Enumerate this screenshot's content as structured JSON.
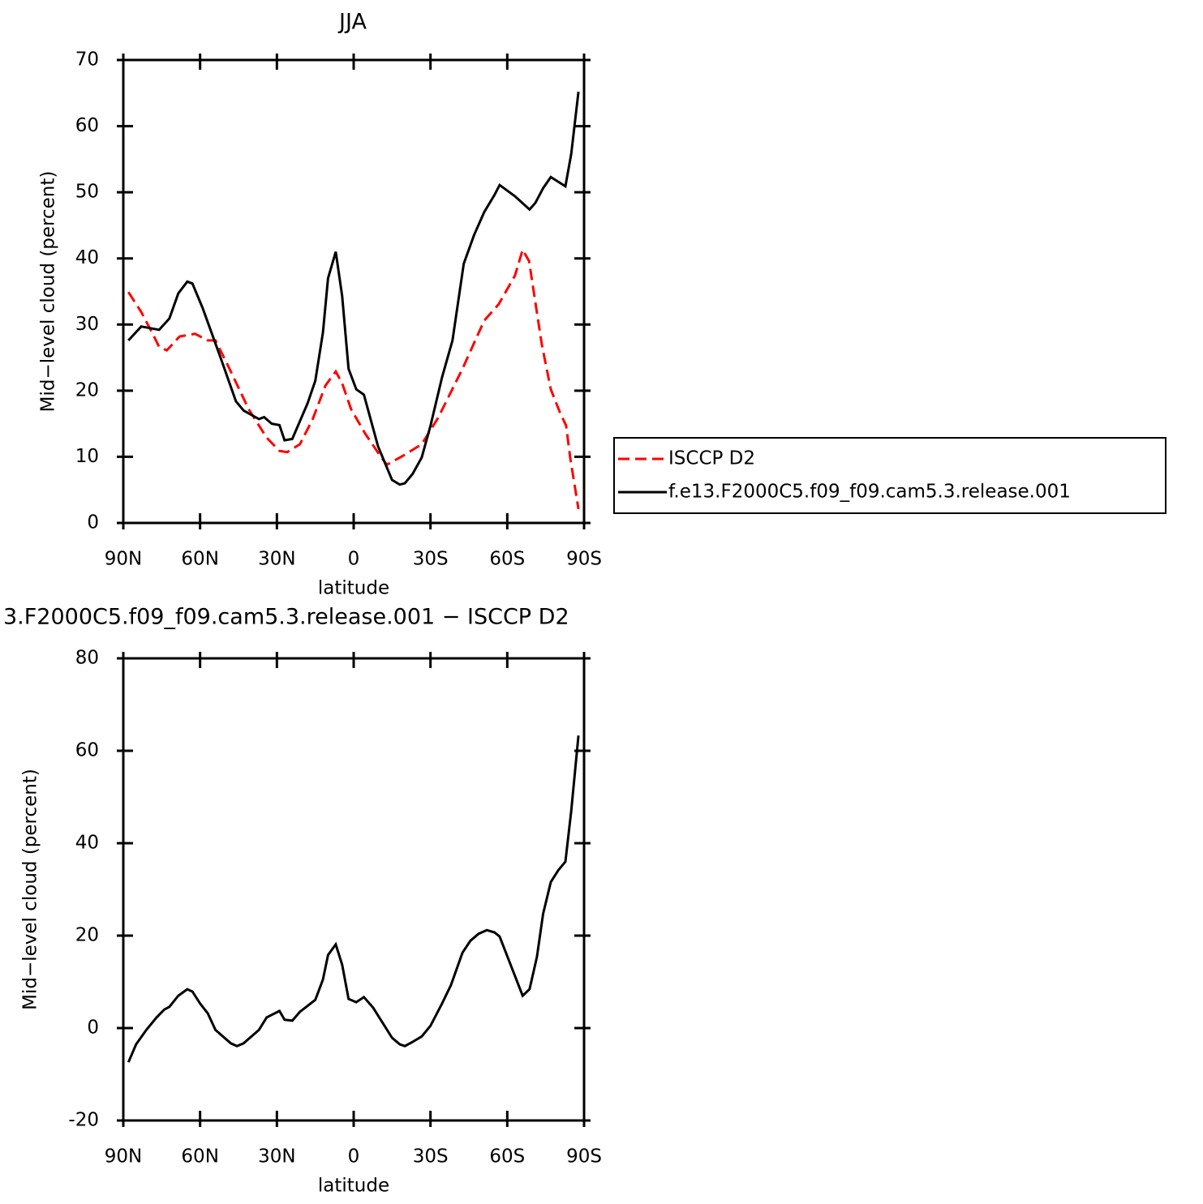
{
  "chart_data": [
    {
      "type": "line",
      "title": "JJA",
      "x_label": "latitude",
      "y_label": "Mid−level cloud (percent)",
      "xlim": [
        90,
        -90
      ],
      "xticks": [
        {
          "value": 90,
          "label": "90N"
        },
        {
          "value": 60,
          "label": "60N"
        },
        {
          "value": 30,
          "label": "30N"
        },
        0,
        {
          "value": -30,
          "label": "30S"
        },
        {
          "value": -60,
          "label": "60S"
        },
        {
          "value": -90,
          "label": "90S"
        }
      ],
      "ylim": [
        0,
        70
      ],
      "yticks": [
        0,
        10,
        20,
        30,
        40,
        50,
        60,
        70
      ],
      "legend": "right",
      "series": [
        {
          "name": "ISCCP D2",
          "color": "#ff0000",
          "line_style": "dashed",
          "x": [
            88,
            83,
            78,
            76,
            73,
            68,
            62,
            57,
            54,
            49,
            41,
            34,
            29,
            26,
            21,
            16,
            11,
            7,
            4.5,
            1,
            -4.5,
            -11,
            -13,
            -19,
            -26.6,
            -33,
            -42.5,
            -51,
            -56.7,
            -63,
            -66,
            -68.5,
            -73.5,
            -77,
            -80.5,
            -83,
            -84.6,
            -87.8
          ],
          "values": [
            34.9,
            31.9,
            28.2,
            26.6,
            26.1,
            28.2,
            28.6,
            27.6,
            27.6,
            23.7,
            17.2,
            12.9,
            10.9,
            10.7,
            11.9,
            15.7,
            20.8,
            22.9,
            21.1,
            17.2,
            13.5,
            9.8,
            8.8,
            10.1,
            11.9,
            15.9,
            23.3,
            30.6,
            33.1,
            37.4,
            41.3,
            39.6,
            27,
            20.2,
            16.8,
            14.7,
            9.8,
            2.1
          ]
        },
        {
          "name": "f.e13.F2000C5.f09_f09.cam5.3.release.001",
          "color": "#000000",
          "line_style": "solid",
          "x": [
            88,
            83,
            76,
            72,
            68.5,
            65,
            63,
            59,
            52,
            46,
            43,
            37,
            35,
            32,
            29,
            27,
            24,
            18,
            15,
            12,
            10,
            7,
            4.5,
            2,
            -1,
            -4,
            -9.5,
            -15,
            -18,
            -20,
            -23,
            -26.6,
            -30,
            -34.5,
            -38.6,
            -43,
            -47,
            -51,
            -55,
            -57,
            -63,
            -68.7,
            -71,
            -74,
            -77,
            -82.7,
            -85,
            -87.8
          ],
          "values": [
            27.6,
            29.7,
            29.2,
            30.9,
            34.7,
            36.5,
            36.2,
            32.5,
            25,
            18.4,
            17,
            15.7,
            16,
            15,
            14.8,
            12.5,
            12.7,
            18.1,
            21.5,
            28.8,
            37,
            41,
            34.3,
            23.3,
            20.2,
            19.4,
            11.6,
            6.5,
            5.8,
            6,
            7.4,
            9.9,
            14.7,
            22,
            27.6,
            39.2,
            43.5,
            47,
            49.6,
            51.1,
            49.4,
            47.4,
            48.4,
            50.6,
            52.3,
            50.9,
            55.8,
            65.2
          ]
        }
      ]
    },
    {
      "type": "line",
      "title": "3.F2000C5.f09_f09.cam5.3.release.001 − ISCCP D2",
      "x_label": "latitude",
      "y_label": "Mid−level cloud (percent)",
      "xlim": [
        90,
        -90
      ],
      "xticks": [
        {
          "value": 90,
          "label": "90N"
        },
        {
          "value": 60,
          "label": "60N"
        },
        {
          "value": 30,
          "label": "30N"
        },
        0,
        {
          "value": -30,
          "label": "30S"
        },
        {
          "value": -60,
          "label": "60S"
        },
        {
          "value": -90,
          "label": "90S"
        }
      ],
      "ylim": [
        -20,
        80
      ],
      "yticks": [
        -20,
        0,
        20,
        40,
        60,
        80
      ],
      "series": [
        {
          "color": "#000000",
          "line_style": "solid",
          "x": [
            88,
            85,
            81,
            77,
            74,
            72,
            68.5,
            65,
            63,
            60,
            57,
            54,
            48,
            45.6,
            43,
            37,
            34,
            29,
            27,
            24,
            21,
            15,
            12,
            10,
            7,
            4.5,
            2,
            -1,
            -4,
            -7.6,
            -15,
            -18,
            -20,
            -23,
            -26.6,
            -30,
            -34.5,
            -38,
            -42.5,
            -45.6,
            -48.8,
            -52,
            -55,
            -57,
            -66,
            -68.7,
            -71.6,
            -74,
            -77,
            -80,
            -82.7,
            -85,
            -87.8
          ],
          "values": [
            -7.4,
            -3.5,
            -0.4,
            2.3,
            4,
            4.6,
            7,
            8.4,
            7.9,
            5.3,
            3.2,
            -0.4,
            -3.3,
            -3.9,
            -3.3,
            -0.4,
            2.3,
            3.7,
            1.8,
            1.6,
            3.5,
            6.1,
            10.5,
            15.8,
            18.1,
            13.7,
            6.3,
            5.6,
            6.7,
            4.4,
            -2.1,
            -3.5,
            -3.9,
            -3,
            -1.8,
            0.5,
            5.3,
            9.3,
            16.3,
            18.9,
            20.4,
            21.2,
            20.7,
            19.8,
            7,
            8.4,
            15.4,
            24.7,
            31.6,
            34.2,
            36,
            47,
            63.3
          ]
        }
      ]
    }
  ]
}
